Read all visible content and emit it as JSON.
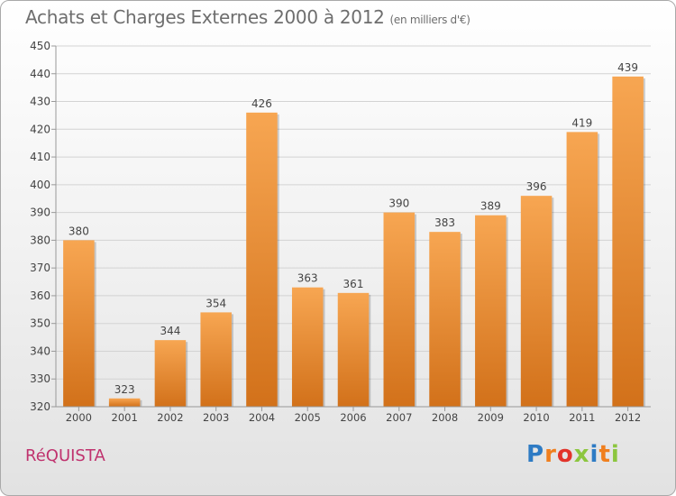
{
  "title": "Achats et Charges Externes 2000 à 2012",
  "subtitle": "(en milliers d'€)",
  "location": "RéQUISTA",
  "brand": {
    "letters": [
      "P",
      "r",
      "o",
      "x",
      "i",
      "t",
      "i"
    ],
    "colors": [
      "#2e7bc4",
      "#f07f1e",
      "#e2332a",
      "#8cc63f",
      "#2e7bc4",
      "#f07f1e",
      "#8cc63f"
    ]
  },
  "colors": {
    "bar_light": "#f7a652",
    "bar_dark": "#d2711a",
    "grid": "#d3d3d3",
    "axis_text": "#444444"
  },
  "chart_data": {
    "type": "bar",
    "categories": [
      "2000",
      "2001",
      "2002",
      "2003",
      "2004",
      "2005",
      "2006",
      "2007",
      "2008",
      "2009",
      "2010",
      "2011",
      "2012"
    ],
    "values": [
      380,
      323,
      344,
      354,
      426,
      363,
      361,
      390,
      383,
      389,
      396,
      419,
      439
    ],
    "ylim": [
      320,
      450
    ],
    "yticks": [
      320,
      330,
      340,
      350,
      360,
      370,
      380,
      390,
      400,
      410,
      420,
      430,
      440,
      450
    ],
    "grid": true,
    "data_labels": true
  }
}
